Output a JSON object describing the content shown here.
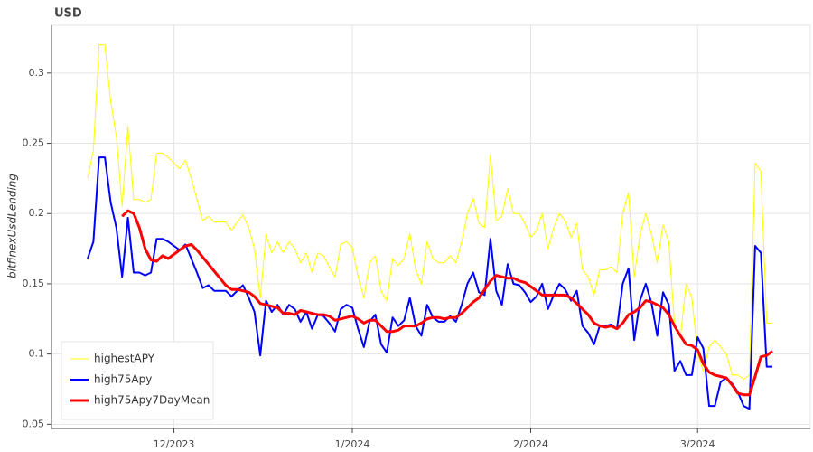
{
  "chart_data": {
    "type": "line",
    "title": "USD",
    "y_label": "bitfinexUsdLending",
    "categories": [
      null,
      null,
      null,
      null,
      null,
      null,
      null,
      null,
      null,
      null,
      null,
      null,
      null,
      null,
      null,
      "12/2023",
      null,
      null,
      null,
      null,
      null,
      null,
      null,
      null,
      null,
      null,
      null,
      null,
      null,
      null,
      null,
      null,
      null,
      null,
      null,
      null,
      null,
      null,
      null,
      null,
      null,
      null,
      null,
      null,
      null,
      null,
      "1/2024",
      null,
      null,
      null,
      null,
      null,
      null,
      null,
      null,
      null,
      null,
      null,
      null,
      null,
      null,
      null,
      null,
      null,
      null,
      null,
      null,
      null,
      null,
      null,
      null,
      null,
      null,
      null,
      null,
      null,
      null,
      "2/2024",
      null,
      null,
      null,
      null,
      null,
      null,
      null,
      null,
      null,
      null,
      null,
      null,
      null,
      null,
      null,
      null,
      null,
      null,
      null,
      null,
      null,
      null,
      null,
      null,
      null,
      null,
      null,
      null,
      "3/2024",
      null,
      null,
      null,
      null,
      null,
      null,
      null,
      null,
      null,
      null,
      null,
      null,
      null
    ],
    "series": [
      {
        "name": "highestAPY",
        "color": "#ffff00",
        "width": 1,
        "values": [
          0.225,
          0.245,
          0.32,
          0.32,
          0.28,
          0.255,
          0.205,
          0.262,
          0.21,
          0.21,
          0.208,
          0.21,
          0.243,
          0.243,
          0.24,
          0.236,
          0.232,
          0.238,
          0.225,
          0.21,
          0.195,
          0.198,
          0.194,
          0.194,
          0.194,
          0.188,
          0.194,
          0.199,
          0.19,
          0.175,
          0.14,
          0.185,
          0.172,
          0.18,
          0.172,
          0.18,
          0.175,
          0.165,
          0.172,
          0.158,
          0.172,
          0.17,
          0.162,
          0.155,
          0.178,
          0.18,
          0.176,
          0.155,
          0.14,
          0.165,
          0.17,
          0.145,
          0.138,
          0.168,
          0.163,
          0.168,
          0.186,
          0.16,
          0.15,
          0.18,
          0.168,
          0.165,
          0.165,
          0.17,
          0.165,
          0.18,
          0.2,
          0.211,
          0.193,
          0.19,
          0.242,
          0.195,
          0.198,
          0.218,
          0.2,
          0.2,
          0.193,
          0.183,
          0.188,
          0.2,
          0.175,
          0.19,
          0.2,
          0.195,
          0.183,
          0.193,
          0.16,
          0.155,
          0.142,
          0.16,
          0.16,
          0.162,
          0.158,
          0.2,
          0.215,
          0.155,
          0.185,
          0.2,
          0.185,
          0.165,
          0.192,
          0.18,
          0.12,
          0.112,
          0.15,
          0.14,
          0.1,
          0.088,
          0.105,
          0.11,
          0.105,
          0.1,
          0.085,
          0.085,
          0.082,
          0.085,
          0.236,
          0.23,
          0.122,
          0.122
        ]
      },
      {
        "name": "high75Apy",
        "color": "#0000ff",
        "width": 2,
        "values": [
          0.168,
          0.18,
          0.24,
          0.24,
          0.208,
          0.19,
          0.155,
          0.197,
          0.158,
          0.158,
          0.156,
          0.158,
          0.182,
          0.182,
          0.18,
          0.177,
          0.174,
          0.178,
          0.168,
          0.158,
          0.147,
          0.149,
          0.145,
          0.145,
          0.145,
          0.141,
          0.145,
          0.149,
          0.14,
          0.13,
          0.099,
          0.138,
          0.13,
          0.135,
          0.128,
          0.135,
          0.132,
          0.123,
          0.13,
          0.118,
          0.128,
          0.127,
          0.122,
          0.116,
          0.132,
          0.135,
          0.133,
          0.118,
          0.105,
          0.123,
          0.128,
          0.107,
          0.101,
          0.126,
          0.12,
          0.124,
          0.14,
          0.12,
          0.113,
          0.135,
          0.126,
          0.123,
          0.123,
          0.127,
          0.123,
          0.135,
          0.15,
          0.158,
          0.144,
          0.142,
          0.182,
          0.145,
          0.135,
          0.164,
          0.15,
          0.149,
          0.144,
          0.137,
          0.141,
          0.15,
          0.132,
          0.142,
          0.15,
          0.146,
          0.138,
          0.145,
          0.12,
          0.115,
          0.107,
          0.12,
          0.12,
          0.121,
          0.118,
          0.15,
          0.161,
          0.11,
          0.138,
          0.15,
          0.136,
          0.113,
          0.144,
          0.135,
          0.088,
          0.095,
          0.085,
          0.085,
          0.112,
          0.104,
          0.063,
          0.063,
          0.08,
          0.083,
          0.079,
          0.073,
          0.063,
          0.061,
          0.177,
          0.172,
          0.091,
          0.091
        ]
      },
      {
        "name": "high75Apy7DayMean",
        "color": "#ff0000",
        "width": 3,
        "values": [
          null,
          null,
          null,
          null,
          null,
          null,
          0.198,
          0.202,
          0.2,
          0.19,
          0.175,
          0.167,
          0.166,
          0.17,
          0.168,
          0.171,
          0.174,
          0.177,
          0.178,
          0.174,
          0.169,
          0.164,
          0.159,
          0.154,
          0.149,
          0.146,
          0.146,
          0.145,
          0.144,
          0.141,
          0.136,
          0.135,
          0.134,
          0.133,
          0.129,
          0.129,
          0.128,
          0.131,
          0.13,
          0.129,
          0.128,
          0.128,
          0.127,
          0.124,
          0.125,
          0.126,
          0.127,
          0.125,
          0.122,
          0.124,
          0.124,
          0.12,
          0.116,
          0.116,
          0.117,
          0.12,
          0.12,
          0.12,
          0.122,
          0.125,
          0.126,
          0.126,
          0.125,
          0.126,
          0.126,
          0.129,
          0.133,
          0.137,
          0.14,
          0.146,
          0.152,
          0.156,
          0.155,
          0.154,
          0.154,
          0.152,
          0.151,
          0.148,
          0.145,
          0.142,
          0.142,
          0.142,
          0.142,
          0.142,
          0.14,
          0.136,
          0.132,
          0.128,
          0.122,
          0.12,
          0.119,
          0.12,
          0.118,
          0.122,
          0.128,
          0.13,
          0.133,
          0.138,
          0.137,
          0.135,
          0.133,
          0.128,
          0.12,
          0.113,
          0.107,
          0.106,
          0.103,
          0.093,
          0.087,
          0.085,
          0.084,
          0.083,
          0.078,
          0.072,
          0.071,
          0.071,
          0.084,
          0.098,
          0.099,
          0.102
        ]
      }
    ],
    "ylim": [
      0.047,
      0.334
    ],
    "yticks": [
      0.05,
      0.1,
      0.15,
      0.2,
      0.25,
      0.3
    ],
    "grid": true,
    "legend": "bottom-left"
  }
}
